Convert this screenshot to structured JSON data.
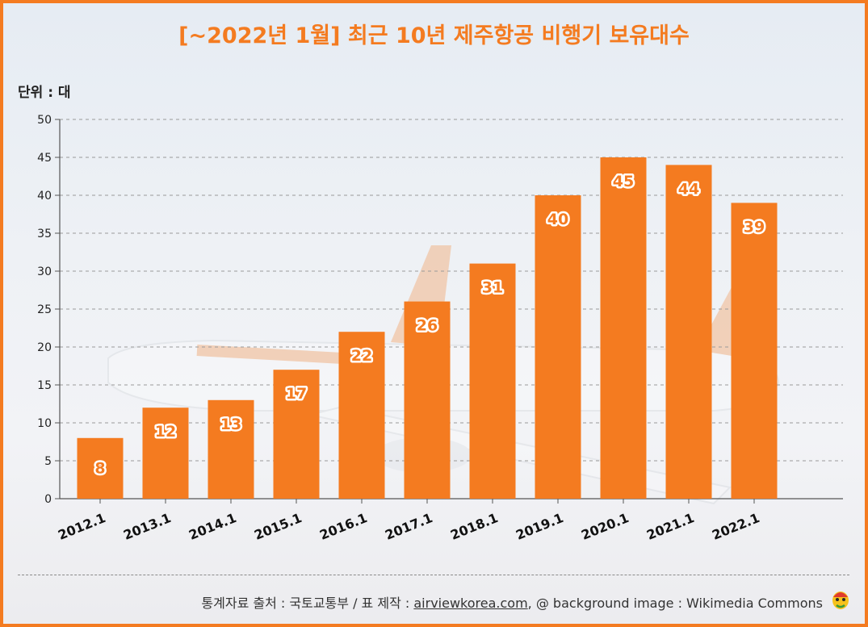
{
  "title": "[~2022년 1월] 최근 10년 제주항공 비행기 보유대수",
  "unit_label": "단위 : 대",
  "footer": {
    "source_text": "통계자료 출처 : 국토교통부 / 표 제작 : ",
    "link": "airviewkorea.com",
    "image_credit": ", @ background image : Wikimedia Commons"
  },
  "colors": {
    "accent": "#f47b20",
    "grid": "#9a9a9a",
    "axis": "#555555"
  },
  "chart_data": {
    "type": "bar",
    "title": "[~2022년 1월] 최근 10년 제주항공 비행기 보유대수",
    "xlabel": "",
    "ylabel": "단위 : 대",
    "categories": [
      "2012.1",
      "2013.1",
      "2014.1",
      "2015.1",
      "2016.1",
      "2017.1",
      "2018.1",
      "2019.1",
      "2020.1",
      "2021.1",
      "2022.1"
    ],
    "values": [
      8,
      12,
      13,
      17,
      22,
      26,
      31,
      40,
      45,
      44,
      39
    ],
    "ylim": [
      0,
      50
    ],
    "yticks": [
      0,
      5,
      10,
      15,
      20,
      25,
      30,
      35,
      40,
      45,
      50
    ],
    "grid": true,
    "legend": "none"
  }
}
